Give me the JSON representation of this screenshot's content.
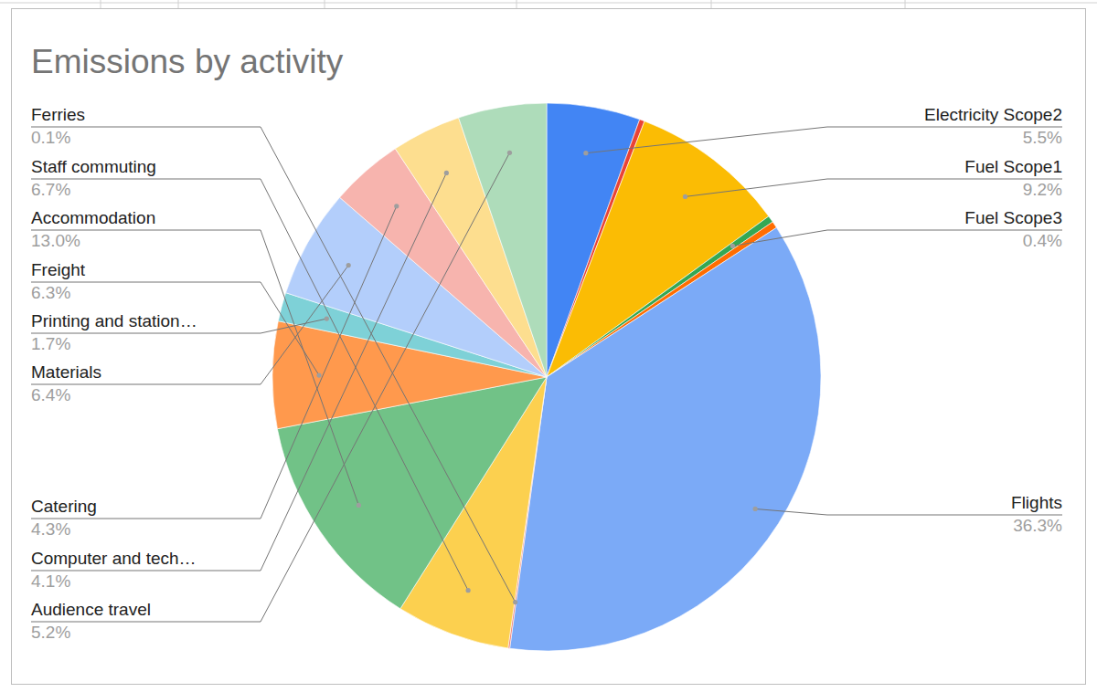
{
  "chart_data": {
    "type": "pie",
    "title": "Emissions by activity",
    "categories": [
      "Electricity Scope2",
      null,
      "Fuel Scope1",
      "Fuel Scope3",
      null,
      "Flights",
      "Ferries",
      "Staff commuting",
      "Accommodation",
      "Freight",
      "Printing and station…",
      "Materials",
      "Catering",
      "Computer and tech…",
      "Audience travel"
    ],
    "values": [
      5.5,
      0.3,
      9.2,
      0.4,
      0.4,
      36.3,
      0.1,
      6.7,
      13.0,
      6.3,
      1.7,
      6.4,
      4.3,
      4.1,
      5.2
    ],
    "value_labels": [
      "5.5%",
      null,
      "9.2%",
      "0.4%",
      null,
      "36.3%",
      "0.1%",
      "6.7%",
      "13.0%",
      "6.3%",
      "1.7%",
      "6.4%",
      "4.3%",
      "4.1%",
      "5.2%"
    ],
    "colors": [
      "#4285f4",
      "#ea4335",
      "#fbbc04",
      "#34a853",
      "#ff6d01",
      "#7baaf7",
      "#f07b72",
      "#fcd04f",
      "#71c287",
      "#ff994d",
      "#7ed1d7",
      "#b3cefb",
      "#f7b4ae",
      "#fdde8f",
      "#aedcba"
    ],
    "data_labels": true
  }
}
